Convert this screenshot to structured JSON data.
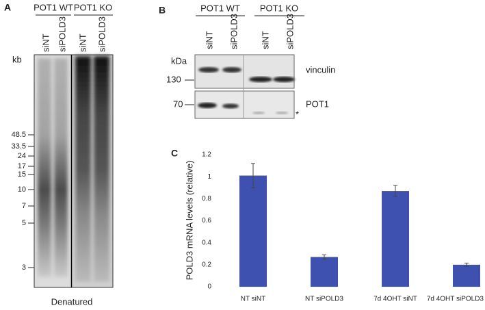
{
  "panel_a": {
    "letter": "A",
    "groups": [
      "POT1 WT",
      "POT1 KO"
    ],
    "lanes": [
      "siNT",
      "siPOLD3",
      "siNT",
      "siPOLD3"
    ],
    "unit": "kb",
    "markers": [
      "48.5",
      "33.5",
      "24",
      "17",
      "15",
      "10",
      "7",
      "5",
      "3"
    ],
    "caption": "Denatured"
  },
  "panel_b": {
    "letter": "B",
    "groups": [
      "POT1 WT",
      "POT1 KO"
    ],
    "lanes": [
      "siNT",
      "siPOLD3",
      "siNT",
      "siPOLD3"
    ],
    "unit": "kDa",
    "markers": [
      "130",
      "70"
    ],
    "proteins": [
      "vinculin",
      "POT1"
    ],
    "note": "*"
  },
  "chart_data": {
    "type": "bar",
    "letter": "C",
    "y_label": "POLD3 mRNA levels (relative)",
    "categories": [
      "NT siNT",
      "NT siPOLD3",
      "7d 4OHT siNT",
      "7d 4OHT siPOLD3"
    ],
    "values": [
      1.01,
      0.27,
      0.87,
      0.2
    ],
    "errors": [
      0.11,
      0.02,
      0.05,
      0.015
    ],
    "color": "#3f51b0",
    "ylim": [
      0,
      1.2
    ],
    "yticks": [
      0,
      0.2,
      0.4,
      0.6,
      0.8,
      1,
      1.2
    ],
    "grid": false
  }
}
